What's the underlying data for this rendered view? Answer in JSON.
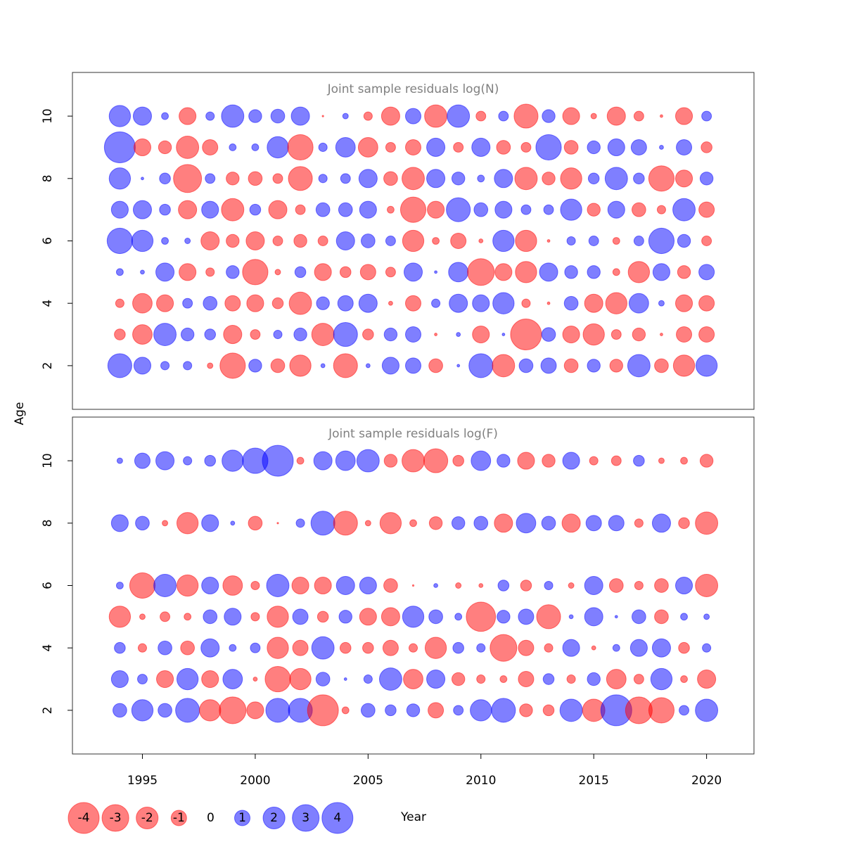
{
  "chart_data": [
    {
      "type": "bubble",
      "title": "Joint sample residuals log(N)",
      "ylabel": "Age",
      "x": [
        1994,
        1995,
        1996,
        1997,
        1998,
        1999,
        2000,
        2001,
        2002,
        2003,
        2004,
        2005,
        2006,
        2007,
        2008,
        2009,
        2010,
        2011,
        2012,
        2013,
        2014,
        2015,
        2016,
        2017,
        2018,
        2019,
        2020
      ],
      "ages": [
        10,
        9,
        8,
        7,
        6,
        5,
        4,
        3,
        2
      ],
      "values": [
        [
          1.9,
          1.4,
          0.2,
          -1.2,
          0.3,
          2.1,
          0.7,
          0.8,
          1.4,
          -0.01,
          0.13,
          -0.3,
          -1.4,
          1.0,
          -2.1,
          2.1,
          -0.4,
          0.4,
          -2.4,
          0.7,
          -1.2,
          -0.13,
          -1.4,
          -0.4,
          -0.03,
          -1.2,
          0.4
        ],
        [
          4.0,
          -1.2,
          -0.7,
          -2.1,
          -1.0,
          0.2,
          0.2,
          1.9,
          -2.7,
          0.3,
          1.6,
          -1.6,
          -0.4,
          -1.0,
          1.4,
          -0.4,
          1.4,
          -0.8,
          -0.4,
          2.7,
          -0.8,
          0.7,
          1.2,
          1.0,
          0.07,
          1.0,
          -0.5
        ],
        [
          1.9,
          0.03,
          0.5,
          -3.3,
          0.4,
          -0.7,
          -0.8,
          -0.4,
          -2.4,
          0.3,
          0.4,
          1.4,
          -0.8,
          -2.1,
          1.4,
          0.7,
          0.2,
          1.4,
          -2.1,
          -0.7,
          -1.9,
          0.5,
          2.1,
          0.5,
          -2.7,
          -1.2,
          0.7
        ],
        [
          1.2,
          1.4,
          0.5,
          -1.4,
          1.2,
          -2.1,
          0.5,
          -1.4,
          -0.4,
          0.8,
          0.8,
          1.2,
          -0.2,
          -2.7,
          -1.2,
          2.4,
          0.8,
          1.2,
          0.4,
          0.4,
          1.9,
          -0.7,
          1.2,
          -0.8,
          -0.3,
          2.1,
          -1.0
        ],
        [
          2.7,
          1.9,
          0.2,
          0.13,
          -1.4,
          -0.7,
          -1.4,
          -0.4,
          -0.7,
          -0.4,
          1.4,
          0.8,
          0.4,
          -1.9,
          -0.2,
          -1.0,
          -0.07,
          1.9,
          -1.9,
          -0.03,
          0.3,
          0.4,
          -0.2,
          0.4,
          2.7,
          0.7,
          -0.4
        ],
        [
          0.2,
          0.07,
          1.4,
          -1.2,
          -0.3,
          0.7,
          -2.7,
          -0.13,
          0.5,
          -1.2,
          -0.5,
          -1.0,
          -0.4,
          1.4,
          0.03,
          1.6,
          -3.0,
          -1.2,
          -1.9,
          1.4,
          0.7,
          0.7,
          -0.2,
          -1.9,
          1.2,
          -0.7,
          1.0
        ],
        [
          -0.3,
          -1.6,
          -1.2,
          0.4,
          0.8,
          -1.0,
          -1.2,
          -0.5,
          -2.1,
          0.7,
          1.0,
          1.4,
          -0.07,
          -1.0,
          0.3,
          1.4,
          1.2,
          1.9,
          -0.3,
          -0.03,
          0.8,
          -1.4,
          -1.9,
          1.6,
          0.13,
          -1.2,
          -1.0
        ],
        [
          -0.5,
          -1.6,
          2.1,
          0.7,
          0.5,
          -1.4,
          -0.4,
          0.3,
          0.7,
          -2.1,
          2.4,
          -0.5,
          0.7,
          1.0,
          -0.03,
          0.07,
          -1.2,
          0.03,
          -4.0,
          0.8,
          -1.2,
          -1.9,
          -0.4,
          -0.7,
          -0.03,
          -1.0,
          -1.0
        ],
        [
          2.4,
          1.2,
          0.3,
          0.3,
          -0.13,
          -2.7,
          0.7,
          -0.8,
          -1.9,
          0.07,
          -2.4,
          0.07,
          1.2,
          1.0,
          -0.8,
          0.03,
          2.4,
          -2.1,
          0.8,
          1.0,
          -0.8,
          0.7,
          -0.7,
          2.1,
          -0.8,
          -1.9,
          1.9
        ]
      ],
      "positive_color": "#0000ff",
      "negative_color": "#ff0000",
      "xlim": [
        1991.9,
        2022.1
      ],
      "ylim": [
        0.6,
        11.4
      ],
      "yticks": [
        2,
        4,
        6,
        8,
        10
      ]
    },
    {
      "type": "bubble",
      "title": "Joint sample residuals log(F)",
      "xlabel": "Year",
      "x": [
        1994,
        1995,
        1996,
        1997,
        1998,
        1999,
        2000,
        2001,
        2002,
        2003,
        2004,
        2005,
        2006,
        2007,
        2008,
        2009,
        2010,
        2011,
        2012,
        2013,
        2014,
        2015,
        2016,
        2017,
        2018,
        2019,
        2020
      ],
      "ages": [
        10,
        8,
        6,
        5,
        4,
        3,
        2
      ],
      "values": [
        [
          0.13,
          1.0,
          1.4,
          0.3,
          0.5,
          1.9,
          2.7,
          4.0,
          -0.2,
          1.4,
          1.6,
          2.1,
          -0.7,
          -2.1,
          -2.4,
          -0.5,
          1.6,
          0.7,
          -1.2,
          -0.7,
          1.2,
          -0.3,
          -0.4,
          0.5,
          -0.13,
          -0.2,
          -0.7
        ],
        [
          1.2,
          0.8,
          -0.13,
          -1.9,
          1.2,
          0.07,
          -0.8,
          -0.01,
          0.3,
          2.4,
          -2.4,
          -0.13,
          -1.9,
          -0.2,
          -0.7,
          0.7,
          0.8,
          -1.4,
          1.6,
          0.8,
          -1.4,
          1.0,
          1.0,
          -0.3,
          1.4,
          -0.5,
          -2.1
        ],
        [
          0.2,
          -2.7,
          2.1,
          -1.9,
          1.2,
          -1.6,
          -0.3,
          2.1,
          -1.2,
          -1.2,
          1.4,
          1.2,
          -0.8,
          -0.01,
          0.07,
          -0.13,
          -0.07,
          0.5,
          -0.5,
          0.3,
          -0.13,
          1.4,
          -0.8,
          -0.3,
          -0.8,
          1.2,
          -2.1
        ],
        [
          -1.9,
          -0.13,
          -0.4,
          -0.2,
          0.8,
          1.2,
          -0.3,
          -1.9,
          1.0,
          -0.5,
          0.7,
          -1.2,
          -1.4,
          1.9,
          0.8,
          0.2,
          -3.6,
          0.7,
          1.0,
          -2.4,
          0.07,
          1.4,
          0.03,
          0.8,
          -0.8,
          0.2,
          0.13
        ],
        [
          0.5,
          -0.3,
          0.8,
          -0.8,
          1.4,
          0.2,
          0.4,
          -1.9,
          -1.0,
          2.1,
          -0.5,
          -0.5,
          -1.0,
          -0.3,
          -1.9,
          0.5,
          0.3,
          -3.0,
          -1.0,
          -0.3,
          1.2,
          -0.07,
          0.2,
          1.2,
          1.4,
          -0.5,
          0.3
        ],
        [
          1.2,
          0.4,
          -1.2,
          1.9,
          -1.2,
          1.6,
          -0.07,
          -2.7,
          -1.9,
          0.8,
          0.03,
          0.3,
          2.1,
          -1.6,
          1.4,
          -0.7,
          -0.3,
          -0.2,
          -1.0,
          0.5,
          -0.3,
          0.7,
          -1.6,
          -0.4,
          1.9,
          -0.2,
          -1.4
        ],
        [
          0.8,
          1.9,
          0.8,
          2.4,
          -1.9,
          -3.0,
          -1.2,
          2.4,
          2.4,
          -4.0,
          -0.2,
          0.8,
          0.5,
          0.7,
          -1.0,
          0.4,
          1.9,
          2.4,
          -0.7,
          -0.5,
          2.1,
          -2.1,
          4.0,
          -3.0,
          -2.7,
          0.4,
          2.1
        ]
      ],
      "positive_color": "#0000ff",
      "negative_color": "#ff0000",
      "xlim": [
        1991.9,
        2022.1
      ],
      "ylim": [
        0.6,
        11.4
      ],
      "yticks": [
        2,
        4,
        6,
        8,
        10
      ],
      "xticks": [
        1995,
        2000,
        2005,
        2010,
        2015,
        2020
      ],
      "size_legend": [
        -4,
        -3,
        -2,
        -1,
        0,
        1,
        2,
        3,
        4
      ]
    }
  ]
}
